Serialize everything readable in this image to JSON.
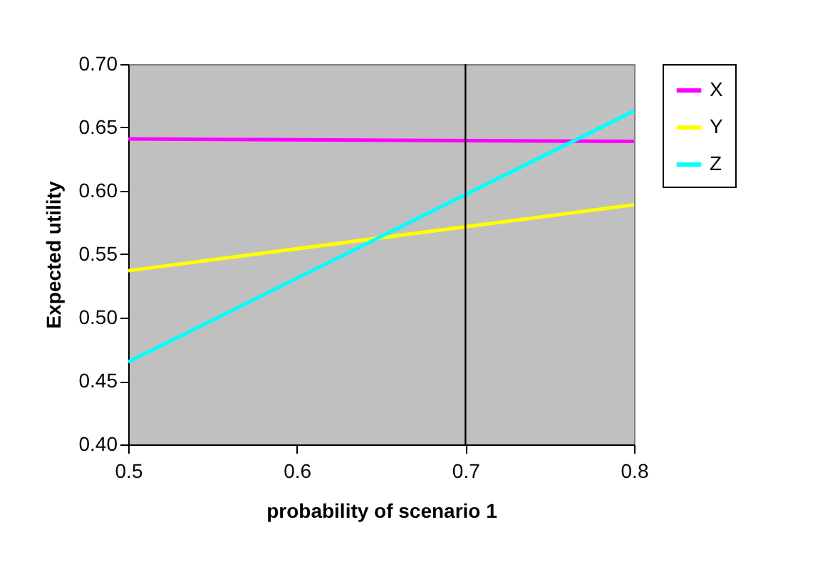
{
  "chart_data": {
    "type": "line",
    "xlabel": "probability of scenario 1",
    "ylabel": "Expected utility",
    "x": [
      0.5,
      0.8
    ],
    "series": [
      {
        "name": "X",
        "color": "#ff00ff",
        "values": [
          0.641,
          0.639
        ]
      },
      {
        "name": "Y",
        "color": "#ffff00",
        "values": [
          0.537,
          0.589
        ]
      },
      {
        "name": "Z",
        "color": "#00ffff",
        "values": [
          0.465,
          0.663
        ]
      }
    ],
    "xlim": [
      0.5,
      0.8
    ],
    "xticks": [
      0.5,
      0.6,
      0.7,
      0.8
    ],
    "ylim": [
      0.4,
      0.7
    ],
    "yticks": [
      {
        "value": 0.4,
        "label": "0.40"
      },
      {
        "value": 0.45,
        "label": "0.45"
      },
      {
        "value": 0.5,
        "label": "0.50"
      },
      {
        "value": 0.55,
        "label": "0.55"
      },
      {
        "value": 0.6,
        "label": "0.60"
      },
      {
        "value": 0.65,
        "label": "0.65"
      },
      {
        "value": 0.7,
        "label": "0.70"
      }
    ],
    "ref_lines": [
      {
        "axis": "x",
        "value": 0.7,
        "color": "#000000"
      }
    ],
    "grid": false,
    "legend": "right",
    "marker": "none",
    "line_style": "solid"
  }
}
